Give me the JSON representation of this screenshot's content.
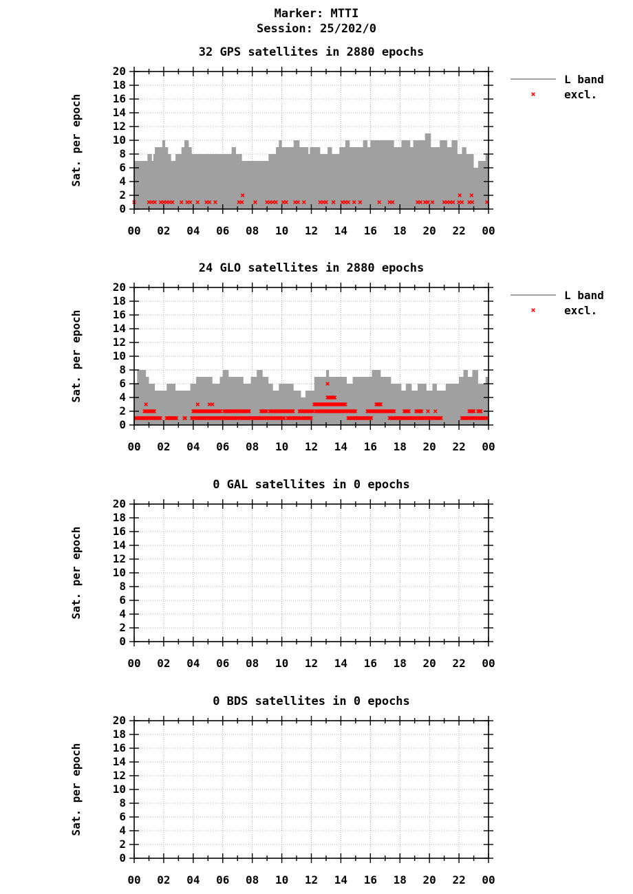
{
  "header": {
    "marker": "Marker: MTTI",
    "session": "Session: 25/202/0"
  },
  "colors": {
    "band_fill": "#a0a0a0",
    "excluded": "#ff0000",
    "axis": "#000000",
    "grid": "#9a9a9a"
  },
  "legend": {
    "band_label": "L band",
    "excl_label": "excl."
  },
  "chart_data": [
    {
      "type": "area",
      "system": "GPS",
      "title": "32 GPS satellites in 2880 epochs",
      "ylabel": "Sat. per epoch",
      "xlabel": "",
      "ylim": [
        0,
        20
      ],
      "xlim": [
        0,
        24
      ],
      "xticklabels": [
        "00",
        "02",
        "04",
        "06",
        "08",
        "10",
        "12",
        "14",
        "16",
        "18",
        "20",
        "22",
        "00"
      ],
      "yticklabels": [
        "0",
        "2",
        "4",
        "6",
        "8",
        "10",
        "12",
        "14",
        "16",
        "18",
        "20"
      ],
      "grid": true,
      "legend_position": "outside-right-top",
      "band_steps": [
        [
          0,
          7
        ],
        [
          0.9,
          8
        ],
        [
          1.2,
          7
        ],
        [
          1.3,
          8
        ],
        [
          1.4,
          9
        ],
        [
          1.9,
          10
        ],
        [
          2.1,
          9
        ],
        [
          2.3,
          8
        ],
        [
          2.5,
          7
        ],
        [
          2.8,
          8
        ],
        [
          3.2,
          9
        ],
        [
          3.4,
          10
        ],
        [
          3.7,
          9
        ],
        [
          3.9,
          8
        ],
        [
          6.6,
          9
        ],
        [
          6.9,
          8
        ],
        [
          7.3,
          7
        ],
        [
          9.1,
          8
        ],
        [
          9.6,
          9
        ],
        [
          9.8,
          10
        ],
        [
          10.0,
          9
        ],
        [
          10.8,
          10
        ],
        [
          11.2,
          9
        ],
        [
          11.8,
          8
        ],
        [
          11.9,
          9
        ],
        [
          12.6,
          8
        ],
        [
          13.1,
          9
        ],
        [
          13.4,
          8
        ],
        [
          13.9,
          9
        ],
        [
          14.3,
          10
        ],
        [
          14.6,
          9
        ],
        [
          15.5,
          10
        ],
        [
          15.8,
          9
        ],
        [
          16.0,
          10
        ],
        [
          17.0,
          10
        ],
        [
          17.6,
          9
        ],
        [
          18.1,
          10
        ],
        [
          18.7,
          9
        ],
        [
          18.9,
          10
        ],
        [
          19.4,
          10
        ],
        [
          19.7,
          11
        ],
        [
          20.1,
          9
        ],
        [
          20.7,
          10
        ],
        [
          21.2,
          9
        ],
        [
          21.5,
          10
        ],
        [
          21.9,
          8
        ],
        [
          22.2,
          9
        ],
        [
          22.5,
          8
        ],
        [
          23.0,
          6
        ],
        [
          23.3,
          7
        ],
        [
          23.8,
          8
        ]
      ],
      "excluded": [
        {
          "x": 0.0,
          "y": 1
        },
        {
          "x": 1.0,
          "y": 1
        },
        {
          "x": 1.2,
          "y": 1
        },
        {
          "x": 1.4,
          "y": 1
        },
        {
          "x": 1.8,
          "y": 1
        },
        {
          "x": 2.0,
          "y": 1
        },
        {
          "x": 2.2,
          "y": 1
        },
        {
          "x": 2.4,
          "y": 1
        },
        {
          "x": 2.6,
          "y": 1
        },
        {
          "x": 3.2,
          "y": 1
        },
        {
          "x": 3.6,
          "y": 1
        },
        {
          "x": 3.8,
          "y": 1
        },
        {
          "x": 4.3,
          "y": 1
        },
        {
          "x": 4.9,
          "y": 1
        },
        {
          "x": 5.1,
          "y": 1
        },
        {
          "x": 5.5,
          "y": 1
        },
        {
          "x": 7.1,
          "y": 1
        },
        {
          "x": 7.3,
          "y": 1
        },
        {
          "x": 7.35,
          "y": 2
        },
        {
          "x": 8.2,
          "y": 1
        },
        {
          "x": 9.0,
          "y": 1
        },
        {
          "x": 9.2,
          "y": 1
        },
        {
          "x": 9.4,
          "y": 1
        },
        {
          "x": 9.6,
          "y": 1
        },
        {
          "x": 10.1,
          "y": 1
        },
        {
          "x": 10.3,
          "y": 1
        },
        {
          "x": 10.9,
          "y": 1
        },
        {
          "x": 11.1,
          "y": 1
        },
        {
          "x": 11.5,
          "y": 1
        },
        {
          "x": 12.6,
          "y": 1
        },
        {
          "x": 12.8,
          "y": 1
        },
        {
          "x": 13.0,
          "y": 1
        },
        {
          "x": 13.5,
          "y": 1
        },
        {
          "x": 14.1,
          "y": 1
        },
        {
          "x": 14.3,
          "y": 1
        },
        {
          "x": 14.5,
          "y": 1
        },
        {
          "x": 14.9,
          "y": 1
        },
        {
          "x": 15.3,
          "y": 1
        },
        {
          "x": 16.6,
          "y": 1
        },
        {
          "x": 17.3,
          "y": 1
        },
        {
          "x": 17.5,
          "y": 1
        },
        {
          "x": 19.2,
          "y": 1
        },
        {
          "x": 19.4,
          "y": 1
        },
        {
          "x": 19.7,
          "y": 1
        },
        {
          "x": 19.9,
          "y": 1
        },
        {
          "x": 20.2,
          "y": 1
        },
        {
          "x": 21.0,
          "y": 1
        },
        {
          "x": 21.2,
          "y": 1
        },
        {
          "x": 21.4,
          "y": 1
        },
        {
          "x": 21.6,
          "y": 1
        },
        {
          "x": 22.0,
          "y": 1
        },
        {
          "x": 22.05,
          "y": 2
        },
        {
          "x": 22.2,
          "y": 1
        },
        {
          "x": 22.7,
          "y": 1
        },
        {
          "x": 22.9,
          "y": 1
        },
        {
          "x": 22.85,
          "y": 2
        },
        {
          "x": 23.9,
          "y": 1
        }
      ]
    },
    {
      "type": "area",
      "system": "GLO",
      "title": "24 GLO satellites in 2880 epochs",
      "ylabel": "Sat. per epoch",
      "xlabel": "",
      "ylim": [
        0,
        20
      ],
      "xlim": [
        0,
        24
      ],
      "xticklabels": [
        "00",
        "02",
        "04",
        "06",
        "08",
        "10",
        "12",
        "14",
        "16",
        "18",
        "20",
        "22",
        "00"
      ],
      "yticklabels": [
        "0",
        "2",
        "4",
        "6",
        "8",
        "10",
        "12",
        "14",
        "16",
        "18",
        "20"
      ],
      "grid": true,
      "legend_position": "outside-right-top",
      "band_steps": [
        [
          0,
          6
        ],
        [
          0.2,
          8
        ],
        [
          0.8,
          7
        ],
        [
          1.0,
          6
        ],
        [
          1.4,
          5
        ],
        [
          2.2,
          6
        ],
        [
          2.8,
          5
        ],
        [
          3.8,
          6
        ],
        [
          4.2,
          7
        ],
        [
          5.3,
          6
        ],
        [
          5.8,
          7
        ],
        [
          6.0,
          8
        ],
        [
          6.4,
          7
        ],
        [
          7.4,
          6
        ],
        [
          7.9,
          7
        ],
        [
          8.3,
          8
        ],
        [
          8.7,
          7
        ],
        [
          9.1,
          6
        ],
        [
          9.4,
          5
        ],
        [
          9.8,
          6
        ],
        [
          10.8,
          5
        ],
        [
          11.3,
          4
        ],
        [
          11.6,
          5
        ],
        [
          12.2,
          7
        ],
        [
          13.0,
          8
        ],
        [
          13.2,
          7
        ],
        [
          14.4,
          6
        ],
        [
          14.8,
          7
        ],
        [
          16.1,
          8
        ],
        [
          16.7,
          7
        ],
        [
          17.4,
          6
        ],
        [
          18.1,
          5
        ],
        [
          18.4,
          6
        ],
        [
          18.8,
          5
        ],
        [
          19.2,
          6
        ],
        [
          19.8,
          5
        ],
        [
          20.2,
          6
        ],
        [
          20.5,
          5
        ],
        [
          21.1,
          6
        ],
        [
          22.0,
          7
        ],
        [
          22.3,
          8
        ],
        [
          22.6,
          7
        ],
        [
          22.9,
          8
        ],
        [
          23.3,
          6
        ],
        [
          23.8,
          7
        ]
      ],
      "excluded_segments": [
        {
          "from": 0.1,
          "to": 1.8,
          "y": 1
        },
        {
          "from": 0.7,
          "to": 1.4,
          "y": 2
        },
        {
          "from": 2.2,
          "to": 2.9,
          "y": 1
        },
        {
          "from": 3.4,
          "to": 3.5,
          "y": 1
        },
        {
          "from": 3.9,
          "to": 7.0,
          "y": 1
        },
        {
          "from": 4.0,
          "to": 5.9,
          "y": 2
        },
        {
          "from": 6.1,
          "to": 6.9,
          "y": 2
        },
        {
          "from": 7.1,
          "to": 10.2,
          "y": 1
        },
        {
          "from": 7.0,
          "to": 7.8,
          "y": 2
        },
        {
          "from": 8.6,
          "to": 9.0,
          "y": 2
        },
        {
          "from": 9.2,
          "to": 10.8,
          "y": 2
        },
        {
          "from": 10.4,
          "to": 11.4,
          "y": 1
        },
        {
          "from": 11.2,
          "to": 12.1,
          "y": 2
        },
        {
          "from": 11.5,
          "to": 12.0,
          "y": 1
        },
        {
          "from": 12.2,
          "to": 14.3,
          "y": 3
        },
        {
          "from": 12.3,
          "to": 14.4,
          "y": 2
        },
        {
          "from": 13.1,
          "to": 13.6,
          "y": 4
        },
        {
          "from": 14.5,
          "to": 16.1,
          "y": 1
        },
        {
          "from": 14.5,
          "to": 15.0,
          "y": 2
        },
        {
          "from": 15.8,
          "to": 17.6,
          "y": 2
        },
        {
          "from": 16.4,
          "to": 16.7,
          "y": 3
        },
        {
          "from": 17.3,
          "to": 20.8,
          "y": 1
        },
        {
          "from": 18.3,
          "to": 18.6,
          "y": 2
        },
        {
          "from": 19.1,
          "to": 19.5,
          "y": 2
        },
        {
          "from": 22.2,
          "to": 23.9,
          "y": 1
        },
        {
          "from": 22.7,
          "to": 23.0,
          "y": 2
        },
        {
          "from": 23.3,
          "to": 23.5,
          "y": 2
        }
      ],
      "excluded": [
        {
          "x": 0.8,
          "y": 3
        },
        {
          "x": 4.3,
          "y": 3
        },
        {
          "x": 5.1,
          "y": 3
        },
        {
          "x": 5.3,
          "y": 3
        },
        {
          "x": 13.1,
          "y": 6
        },
        {
          "x": 16.5,
          "y": 3
        },
        {
          "x": 19.9,
          "y": 2
        },
        {
          "x": 20.4,
          "y": 2
        }
      ]
    },
    {
      "type": "area",
      "system": "GAL",
      "title": "0 GAL satellites in 0 epochs",
      "ylabel": "Sat. per epoch",
      "xlabel": "",
      "ylim": [
        0,
        20
      ],
      "xlim": [
        0,
        24
      ],
      "xticklabels": [
        "00",
        "02",
        "04",
        "06",
        "08",
        "10",
        "12",
        "14",
        "16",
        "18",
        "20",
        "22",
        "00"
      ],
      "yticklabels": [
        "0",
        "2",
        "4",
        "6",
        "8",
        "10",
        "12",
        "14",
        "16",
        "18",
        "20"
      ],
      "grid": true,
      "band_steps": [],
      "excluded": []
    },
    {
      "type": "area",
      "system": "BDS",
      "title": "0 BDS satellites in 0 epochs",
      "ylabel": "Sat. per epoch",
      "xlabel": "",
      "ylim": [
        0,
        20
      ],
      "xlim": [
        0,
        24
      ],
      "xticklabels": [
        "00",
        "02",
        "04",
        "06",
        "08",
        "10",
        "12",
        "14",
        "16",
        "18",
        "20",
        "22",
        "00"
      ],
      "yticklabels": [
        "0",
        "2",
        "4",
        "6",
        "8",
        "10",
        "12",
        "14",
        "16",
        "18",
        "20"
      ],
      "grid": true,
      "band_steps": [],
      "excluded": []
    }
  ]
}
